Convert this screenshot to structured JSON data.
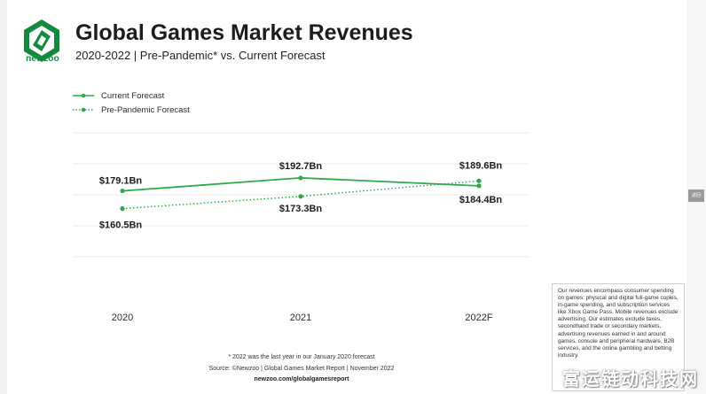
{
  "brand": {
    "name": "newzoo",
    "color": "#148a3c"
  },
  "header": {
    "title": "Global Games Market Revenues",
    "subtitle": "2020-2022 | Pre-Pandemic* vs. Current Forecast"
  },
  "chart_data": {
    "type": "line",
    "title": "Global Games Market Revenues",
    "subtitle": "2020-2022 | Pre-Pandemic* vs. Current Forecast",
    "categories": [
      "2020",
      "2021",
      "2022F"
    ],
    "series": [
      {
        "name": "Current Forecast",
        "values": [
          179.1,
          192.7,
          184.4
        ],
        "labels": [
          "$179.1Bn",
          "$192.7Bn",
          "$184.4Bn"
        ],
        "style": "solid",
        "color": "#2aab4a"
      },
      {
        "name": "Pre-Pandemic Forecast",
        "values": [
          160.5,
          173.3,
          189.6
        ],
        "labels": [
          "$160.5Bn",
          "$173.3Bn",
          "$189.6Bn"
        ],
        "style": "dotted",
        "color": "#2aab4a"
      }
    ],
    "ylim": [
      110,
      240
    ],
    "grid": true,
    "legend_position": "top-left",
    "xlabel": "",
    "ylabel": ""
  },
  "footnotes": {
    "note": "* 2022 was the last year in our January 2020 forecast",
    "source": "Source: ©Newzoo | Global Games Market Report | November 2022",
    "url": "newzoo.com/globalgamesreport"
  },
  "definition_box": {
    "text": "Our revenues encompass consumer spending on games: physical and digital full-game copies, in-game spending, and subscription services like Xbox Game Pass. Mobile revenues exclude advertising. Our estimates exclude taxes, secondhand trade or secondary markets, advertising revenues earned in and around games, console and peripheral hardware, B2B services, and the online gambling and betting industry."
  },
  "overlay": {
    "side_tab": "返回",
    "watermark": "富运链动科技网"
  }
}
